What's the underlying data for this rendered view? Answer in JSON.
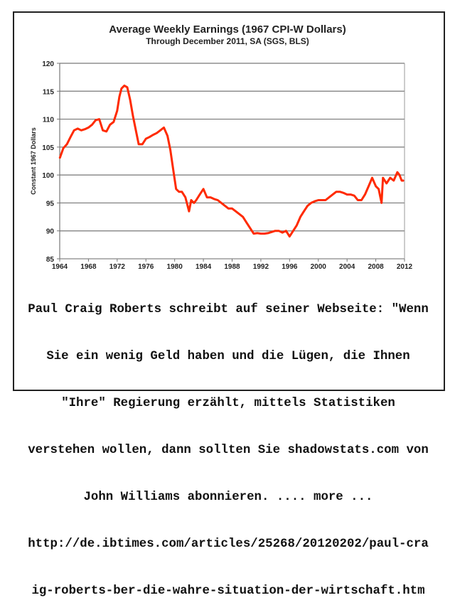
{
  "chart_data": {
    "type": "line",
    "title": "Average Weekly Earnings (1967 CPI-W Dollars)",
    "subtitle": "Through December 2011, SA  (SGS, BLS)",
    "xlabel": "",
    "ylabel": "Constant 1967 Dollars",
    "xlim": [
      1964,
      2012
    ],
    "ylim": [
      85,
      120
    ],
    "x_ticks": [
      "1964",
      "1968",
      "1972",
      "1976",
      "1980",
      "1984",
      "1988",
      "1992",
      "1996",
      "2000",
      "2004",
      "2008",
      "2012"
    ],
    "y_ticks": [
      "85",
      "90",
      "95",
      "100",
      "105",
      "110",
      "115",
      "120"
    ],
    "grid": true,
    "line_color": "#ff2a00",
    "series": [
      {
        "x": [
          1964,
          1964.5,
          1965,
          1965.5,
          1966,
          1966.5,
          1967,
          1967.5,
          1968,
          1968.5,
          1969,
          1969.5,
          1970,
          1970.5,
          1971,
          1971.5,
          1972,
          1972.3,
          1972.6,
          1973,
          1973.4,
          1973.8,
          1974.2,
          1974.6,
          1975,
          1975.5,
          1976,
          1976.5,
          1977,
          1977.5,
          1978,
          1978.5,
          1979,
          1979.4,
          1979.8,
          1980.2,
          1980.6,
          1981,
          1981.5,
          1982,
          1982.3,
          1982.7,
          1983,
          1983.5,
          1984,
          1984.5,
          1985,
          1985.5,
          1986,
          1986.5,
          1987,
          1987.5,
          1988,
          1988.5,
          1989,
          1989.5,
          1990,
          1990.5,
          1991,
          1991.5,
          1992,
          1992.5,
          1993,
          1993.5,
          1994,
          1994.5,
          1995,
          1995.5,
          1996,
          1996.5,
          1997,
          1997.5,
          1998,
          1998.5,
          1999,
          1999.5,
          2000,
          2000.5,
          2001,
          2001.5,
          2002,
          2002.5,
          2003,
          2003.5,
          2004,
          2004.5,
          2005,
          2005.5,
          2006,
          2006.5,
          2007,
          2007.5,
          2008,
          2008.4,
          2008.8,
          2009,
          2009.5,
          2010,
          2010.5,
          2011,
          2011.3,
          2011.6,
          2011.9
        ],
        "y": [
          103,
          104.8,
          105.5,
          106.8,
          108,
          108.3,
          108,
          108.2,
          108.5,
          109,
          109.8,
          110,
          108,
          107.8,
          109,
          109.5,
          111.5,
          114,
          115.5,
          116,
          115.7,
          113.5,
          110.5,
          108,
          105.5,
          105.5,
          106.5,
          106.8,
          107.2,
          107.5,
          108,
          108.5,
          107,
          104.5,
          101,
          97.5,
          97,
          97,
          96,
          93.5,
          95.5,
          95,
          95.5,
          96.5,
          97.5,
          96,
          96,
          95.7,
          95.5,
          95,
          94.5,
          94,
          94,
          93.5,
          93,
          92.5,
          91.5,
          90.5,
          89.5,
          89.6,
          89.5,
          89.5,
          89.6,
          89.8,
          90,
          90,
          89.7,
          90,
          89,
          90,
          91,
          92.5,
          93.5,
          94.5,
          95,
          95.3,
          95.5,
          95.5,
          95.5,
          96,
          96.5,
          97,
          97,
          96.8,
          96.5,
          96.5,
          96.3,
          95.5,
          95.5,
          96.5,
          98,
          99.5,
          98,
          97.5,
          95,
          99.5,
          98.5,
          99.5,
          99,
          100.5,
          100,
          99,
          99
        ]
      }
    ]
  },
  "caption": {
    "lines": [
      "Paul Craig Roberts schreibt auf seiner Webseite: \"Wenn",
      "Sie ein wenig Geld haben und die Lügen, die Ihnen",
      "\"Ihre\" Regierung erzählt, mittels Statistiken",
      "verstehen wollen, dann sollten Sie shadowstats.com von",
      "John Williams abonnieren. .... more ...",
      "http://de.ibtimes.com/articles/25268/20120202/paul-cra",
      "ig-roberts-ber-die-wahre-situation-der-wirtschaft.htm"
    ]
  }
}
